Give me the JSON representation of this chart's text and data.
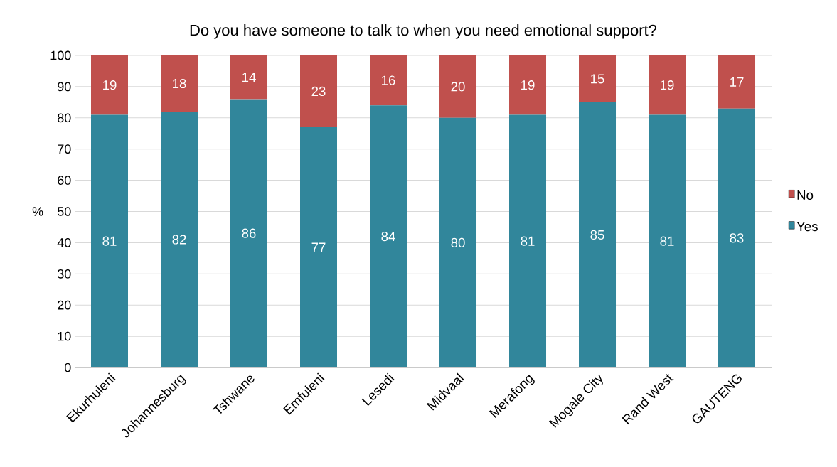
{
  "chart_data": {
    "type": "bar",
    "title": "Do you have someone to talk to when you need emotional support?",
    "ylabel": "%",
    "categories": [
      "Ekurhuleni",
      "Johannesburg",
      "Tshwane",
      "Emfuleni",
      "Lesedi",
      "Midvaal",
      "Merafong",
      "Mogale City",
      "Rand West",
      "GAUTENG"
    ],
    "series": [
      {
        "name": "Yes",
        "color": "#31869b",
        "values": [
          81,
          82,
          86,
          77,
          84,
          80,
          81,
          85,
          81,
          83
        ]
      },
      {
        "name": "No",
        "color": "#c0504d",
        "values": [
          19,
          18,
          14,
          23,
          16,
          20,
          19,
          15,
          19,
          17
        ]
      }
    ],
    "stacked": true,
    "data_labels": true,
    "ylim": [
      0,
      100
    ],
    "yticks": [
      0,
      10,
      20,
      30,
      40,
      50,
      60,
      70,
      80,
      90,
      100
    ],
    "grid": "y",
    "legend": "right"
  }
}
